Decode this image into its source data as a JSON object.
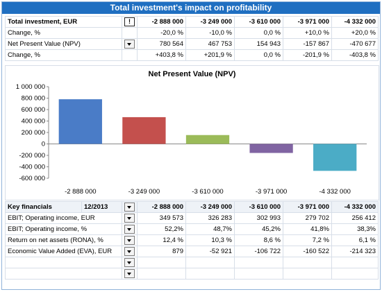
{
  "title": "Total investment's impact on profitability",
  "top_table": {
    "rows": [
      {
        "label": "Total investment, EUR",
        "control": "alert",
        "cells": [
          "-2 888 000",
          "-3 249 000",
          "-3 610 000",
          "-3 971 000",
          "-4 332 000"
        ]
      },
      {
        "label": "Change, %",
        "control": "",
        "cells": [
          "-20,0 %",
          "-10,0 %",
          "0,0 %",
          "+10,0 %",
          "+20,0 %"
        ]
      },
      {
        "label": "Net Present Value (NPV)",
        "control": "dropdown",
        "cells": [
          "780 564",
          "467 753",
          "154 943",
          "-157 867",
          "-470 677"
        ]
      },
      {
        "label": "Change, %",
        "control": "",
        "cells": [
          "+403,8 %",
          "+201,9 %",
          "0,0 %",
          "-201,9 %",
          "-403,8 %"
        ]
      }
    ]
  },
  "chart_data": {
    "type": "bar",
    "title": "Net Present Value (NPV)",
    "categories": [
      "-2 888 000",
      "-3 249 000",
      "-3 610 000",
      "-3 971 000",
      "-4 332 000"
    ],
    "values": [
      780564,
      467753,
      154943,
      -157867,
      -470677
    ],
    "colors": [
      "#4a7cc7",
      "#c4504d",
      "#9bbb59",
      "#8064a2",
      "#4bacc6"
    ],
    "ylim": [
      -600000,
      1000000
    ],
    "yticks": [
      1000000,
      800000,
      600000,
      400000,
      200000,
      0,
      -200000,
      -400000,
      -600000
    ],
    "ytick_labels": [
      "1 000 000",
      "800 000",
      "600 000",
      "400 000",
      "200 000",
      "0",
      "-200 000",
      "-400 000",
      "-600 000"
    ],
    "grid": false
  },
  "bottom_table": {
    "header": {
      "label": "Key financials",
      "period": "12/2013",
      "cells": [
        "-2 888 000",
        "-3 249 000",
        "-3 610 000",
        "-3 971 000",
        "-4 332 000"
      ]
    },
    "rows": [
      {
        "label": "EBIT; Operating income, EUR",
        "cells": [
          "349 573",
          "326 283",
          "302 993",
          "279 702",
          "256 412"
        ]
      },
      {
        "label": "EBIT; Operating income, %",
        "cells": [
          "52,2%",
          "48,7%",
          "45,2%",
          "41,8%",
          "38,3%"
        ]
      },
      {
        "label": "Return on net assets (RONA), %",
        "cells": [
          "12,4 %",
          "10,3 %",
          "8,6 %",
          "7,2 %",
          "6,1 %"
        ]
      },
      {
        "label": "Economic Value Added (EVA), EUR",
        "cells": [
          "879",
          "-52 921",
          "-106 722",
          "-160 522",
          "-214 323"
        ]
      },
      {
        "label": "",
        "cells": [
          "",
          "",
          "",
          "",
          ""
        ]
      },
      {
        "label": "",
        "cells": [
          "",
          "",
          "",
          "",
          ""
        ]
      }
    ]
  },
  "icons": {
    "alert": "exclamation-icon",
    "dropdown": "chevron-down-icon"
  },
  "colors": {
    "title_bg": "#1f6fc1",
    "title_text": "#ffffff",
    "border": "#8fb2d9"
  }
}
